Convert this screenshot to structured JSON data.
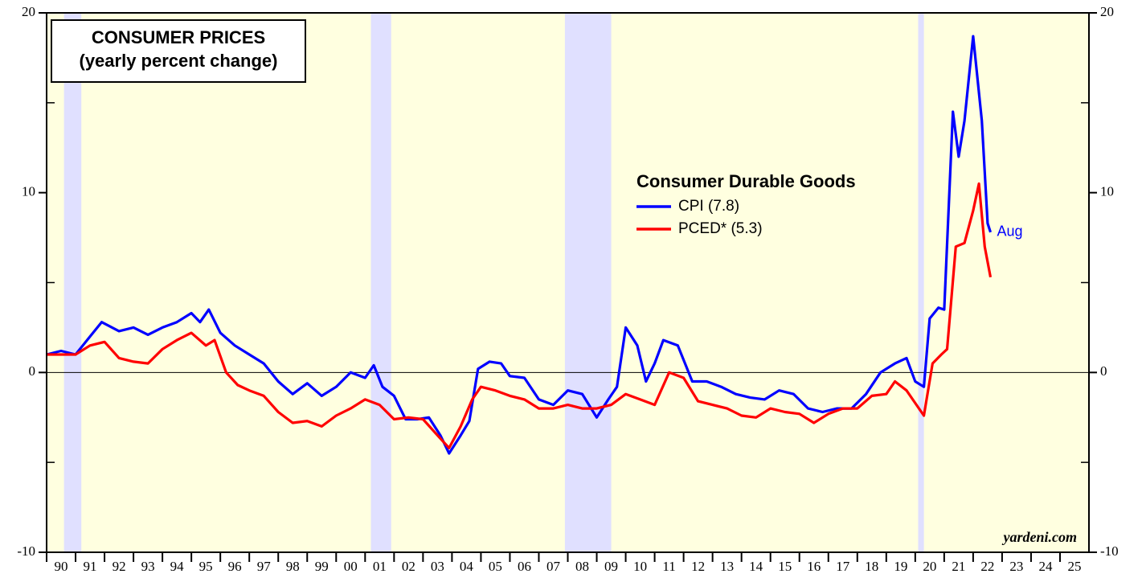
{
  "chart_data": {
    "type": "line",
    "title": "CONSUMER PRICES",
    "subtitle": "(yearly percent change)",
    "legend_title": "Consumer Durable Goods",
    "annotation": "Aug",
    "source": "yardeni.com",
    "xlim": [
      1990,
      2026
    ],
    "xticks": [
      {
        "value": 1990,
        "label": "90"
      },
      {
        "value": 1991,
        "label": "91"
      },
      {
        "value": 1992,
        "label": "92"
      },
      {
        "value": 1993,
        "label": "93"
      },
      {
        "value": 1994,
        "label": "94"
      },
      {
        "value": 1995,
        "label": "95"
      },
      {
        "value": 1996,
        "label": "96"
      },
      {
        "value": 1997,
        "label": "97"
      },
      {
        "value": 1998,
        "label": "98"
      },
      {
        "value": 1999,
        "label": "99"
      },
      {
        "value": 2000,
        "label": "00"
      },
      {
        "value": 2001,
        "label": "01"
      },
      {
        "value": 2002,
        "label": "02"
      },
      {
        "value": 2003,
        "label": "03"
      },
      {
        "value": 2004,
        "label": "04"
      },
      {
        "value": 2005,
        "label": "05"
      },
      {
        "value": 2006,
        "label": "06"
      },
      {
        "value": 2007,
        "label": "07"
      },
      {
        "value": 2008,
        "label": "08"
      },
      {
        "value": 2009,
        "label": "09"
      },
      {
        "value": 2010,
        "label": "10"
      },
      {
        "value": 2011,
        "label": "11"
      },
      {
        "value": 2012,
        "label": "12"
      },
      {
        "value": 2013,
        "label": "13"
      },
      {
        "value": 2014,
        "label": "14"
      },
      {
        "value": 2015,
        "label": "15"
      },
      {
        "value": 2016,
        "label": "16"
      },
      {
        "value": 2017,
        "label": "17"
      },
      {
        "value": 2018,
        "label": "18"
      },
      {
        "value": 2019,
        "label": "19"
      },
      {
        "value": 2020,
        "label": "20"
      },
      {
        "value": 2021,
        "label": "21"
      },
      {
        "value": 2022,
        "label": "22"
      },
      {
        "value": 2023,
        "label": "23"
      },
      {
        "value": 2024,
        "label": "24"
      },
      {
        "value": 2025,
        "label": "25"
      }
    ],
    "ylim": [
      -10,
      20
    ],
    "yticks": [
      -10,
      0,
      10,
      20
    ],
    "yminor": [
      -5,
      5,
      15
    ],
    "recessions": [
      [
        1990.6,
        1991.2
      ],
      [
        2001.2,
        2001.9
      ],
      [
        2007.9,
        2009.5
      ],
      [
        2020.1,
        2020.3
      ]
    ],
    "series": [
      {
        "name": "CPI (7.8)",
        "color": "#0000ff",
        "x": [
          1990.0,
          1990.5,
          1991.0,
          1991.5,
          1991.9,
          1992.5,
          1993.0,
          1993.5,
          1994.0,
          1994.5,
          1995.0,
          1995.3,
          1995.6,
          1996.0,
          1996.5,
          1997.0,
          1997.5,
          1998.0,
          1998.5,
          1999.0,
          1999.5,
          2000.0,
          2000.5,
          2001.0,
          2001.3,
          2001.6,
          2002.0,
          2002.4,
          2002.8,
          2003.2,
          2003.6,
          2003.9,
          2004.3,
          2004.6,
          2004.9,
          2005.3,
          2005.7,
          2006.0,
          2006.5,
          2007.0,
          2007.5,
          2008.0,
          2008.5,
          2009.0,
          2009.4,
          2009.7,
          2010.0,
          2010.4,
          2010.7,
          2011.0,
          2011.3,
          2011.8,
          2012.3,
          2012.8,
          2013.3,
          2013.8,
          2014.3,
          2014.8,
          2015.3,
          2015.8,
          2016.3,
          2016.8,
          2017.3,
          2017.8,
          2018.3,
          2018.8,
          2019.3,
          2019.7,
          2020.0,
          2020.3,
          2020.5,
          2020.8,
          2021.0,
          2021.3,
          2021.5,
          2021.7,
          2022.0,
          2022.3,
          2022.5,
          2022.6
        ],
        "values": [
          1.0,
          1.2,
          1.0,
          2.0,
          2.8,
          2.3,
          2.5,
          2.1,
          2.5,
          2.8,
          3.3,
          2.8,
          3.5,
          2.2,
          1.5,
          1.0,
          0.5,
          -0.5,
          -1.2,
          -0.6,
          -1.3,
          -0.8,
          0.0,
          -0.3,
          0.4,
          -0.8,
          -1.3,
          -2.6,
          -2.6,
          -2.5,
          -3.5,
          -4.5,
          -3.5,
          -2.7,
          0.2,
          0.6,
          0.5,
          -0.2,
          -0.3,
          -1.5,
          -1.8,
          -1.0,
          -1.2,
          -2.5,
          -1.5,
          -0.8,
          2.5,
          1.5,
          -0.5,
          0.5,
          1.8,
          1.5,
          -0.5,
          -0.5,
          -0.8,
          -1.2,
          -1.4,
          -1.5,
          -1.0,
          -1.2,
          -2.0,
          -2.2,
          -2.0,
          -2.0,
          -1.2,
          0.0,
          0.5,
          0.8,
          -0.5,
          -0.8,
          3.0,
          3.6,
          3.5,
          14.5,
          12.0,
          14.0,
          18.7,
          14.0,
          8.3,
          7.8
        ]
      },
      {
        "name": "PCED* (5.3)",
        "color": "#ff0000",
        "x": [
          1990.0,
          1990.5,
          1991.0,
          1991.5,
          1992.0,
          1992.5,
          1993.0,
          1993.5,
          1994.0,
          1994.5,
          1995.0,
          1995.5,
          1995.8,
          1996.2,
          1996.6,
          1997.0,
          1997.5,
          1998.0,
          1998.5,
          1999.0,
          1999.5,
          2000.0,
          2000.5,
          2001.0,
          2001.5,
          2002.0,
          2002.5,
          2003.0,
          2003.5,
          2003.9,
          2004.3,
          2004.7,
          2005.0,
          2005.5,
          2006.0,
          2006.5,
          2007.0,
          2007.5,
          2008.0,
          2008.5,
          2009.0,
          2009.5,
          2010.0,
          2010.5,
          2011.0,
          2011.5,
          2012.0,
          2012.5,
          2013.0,
          2013.5,
          2014.0,
          2014.5,
          2015.0,
          2015.5,
          2016.0,
          2016.5,
          2017.0,
          2017.5,
          2018.0,
          2018.5,
          2019.0,
          2019.3,
          2019.7,
          2020.0,
          2020.3,
          2020.6,
          2020.9,
          2021.1,
          2021.4,
          2021.7,
          2022.0,
          2022.2,
          2022.4,
          2022.6
        ],
        "values": [
          1.0,
          1.0,
          1.0,
          1.5,
          1.7,
          0.8,
          0.6,
          0.5,
          1.3,
          1.8,
          2.2,
          1.5,
          1.8,
          0.0,
          -0.7,
          -1.0,
          -1.3,
          -2.2,
          -2.8,
          -2.7,
          -3.0,
          -2.4,
          -2.0,
          -1.5,
          -1.8,
          -2.6,
          -2.5,
          -2.6,
          -3.5,
          -4.2,
          -3.0,
          -1.5,
          -0.8,
          -1.0,
          -1.3,
          -1.5,
          -2.0,
          -2.0,
          -1.8,
          -2.0,
          -2.0,
          -1.8,
          -1.2,
          -1.5,
          -1.8,
          0.0,
          -0.3,
          -1.6,
          -1.8,
          -2.0,
          -2.4,
          -2.5,
          -2.0,
          -2.2,
          -2.3,
          -2.8,
          -2.3,
          -2.0,
          -2.0,
          -1.3,
          -1.2,
          -0.5,
          -1.0,
          -1.7,
          -2.4,
          0.5,
          1.0,
          1.3,
          7.0,
          7.2,
          9.0,
          10.5,
          7.0,
          5.3
        ]
      }
    ]
  }
}
